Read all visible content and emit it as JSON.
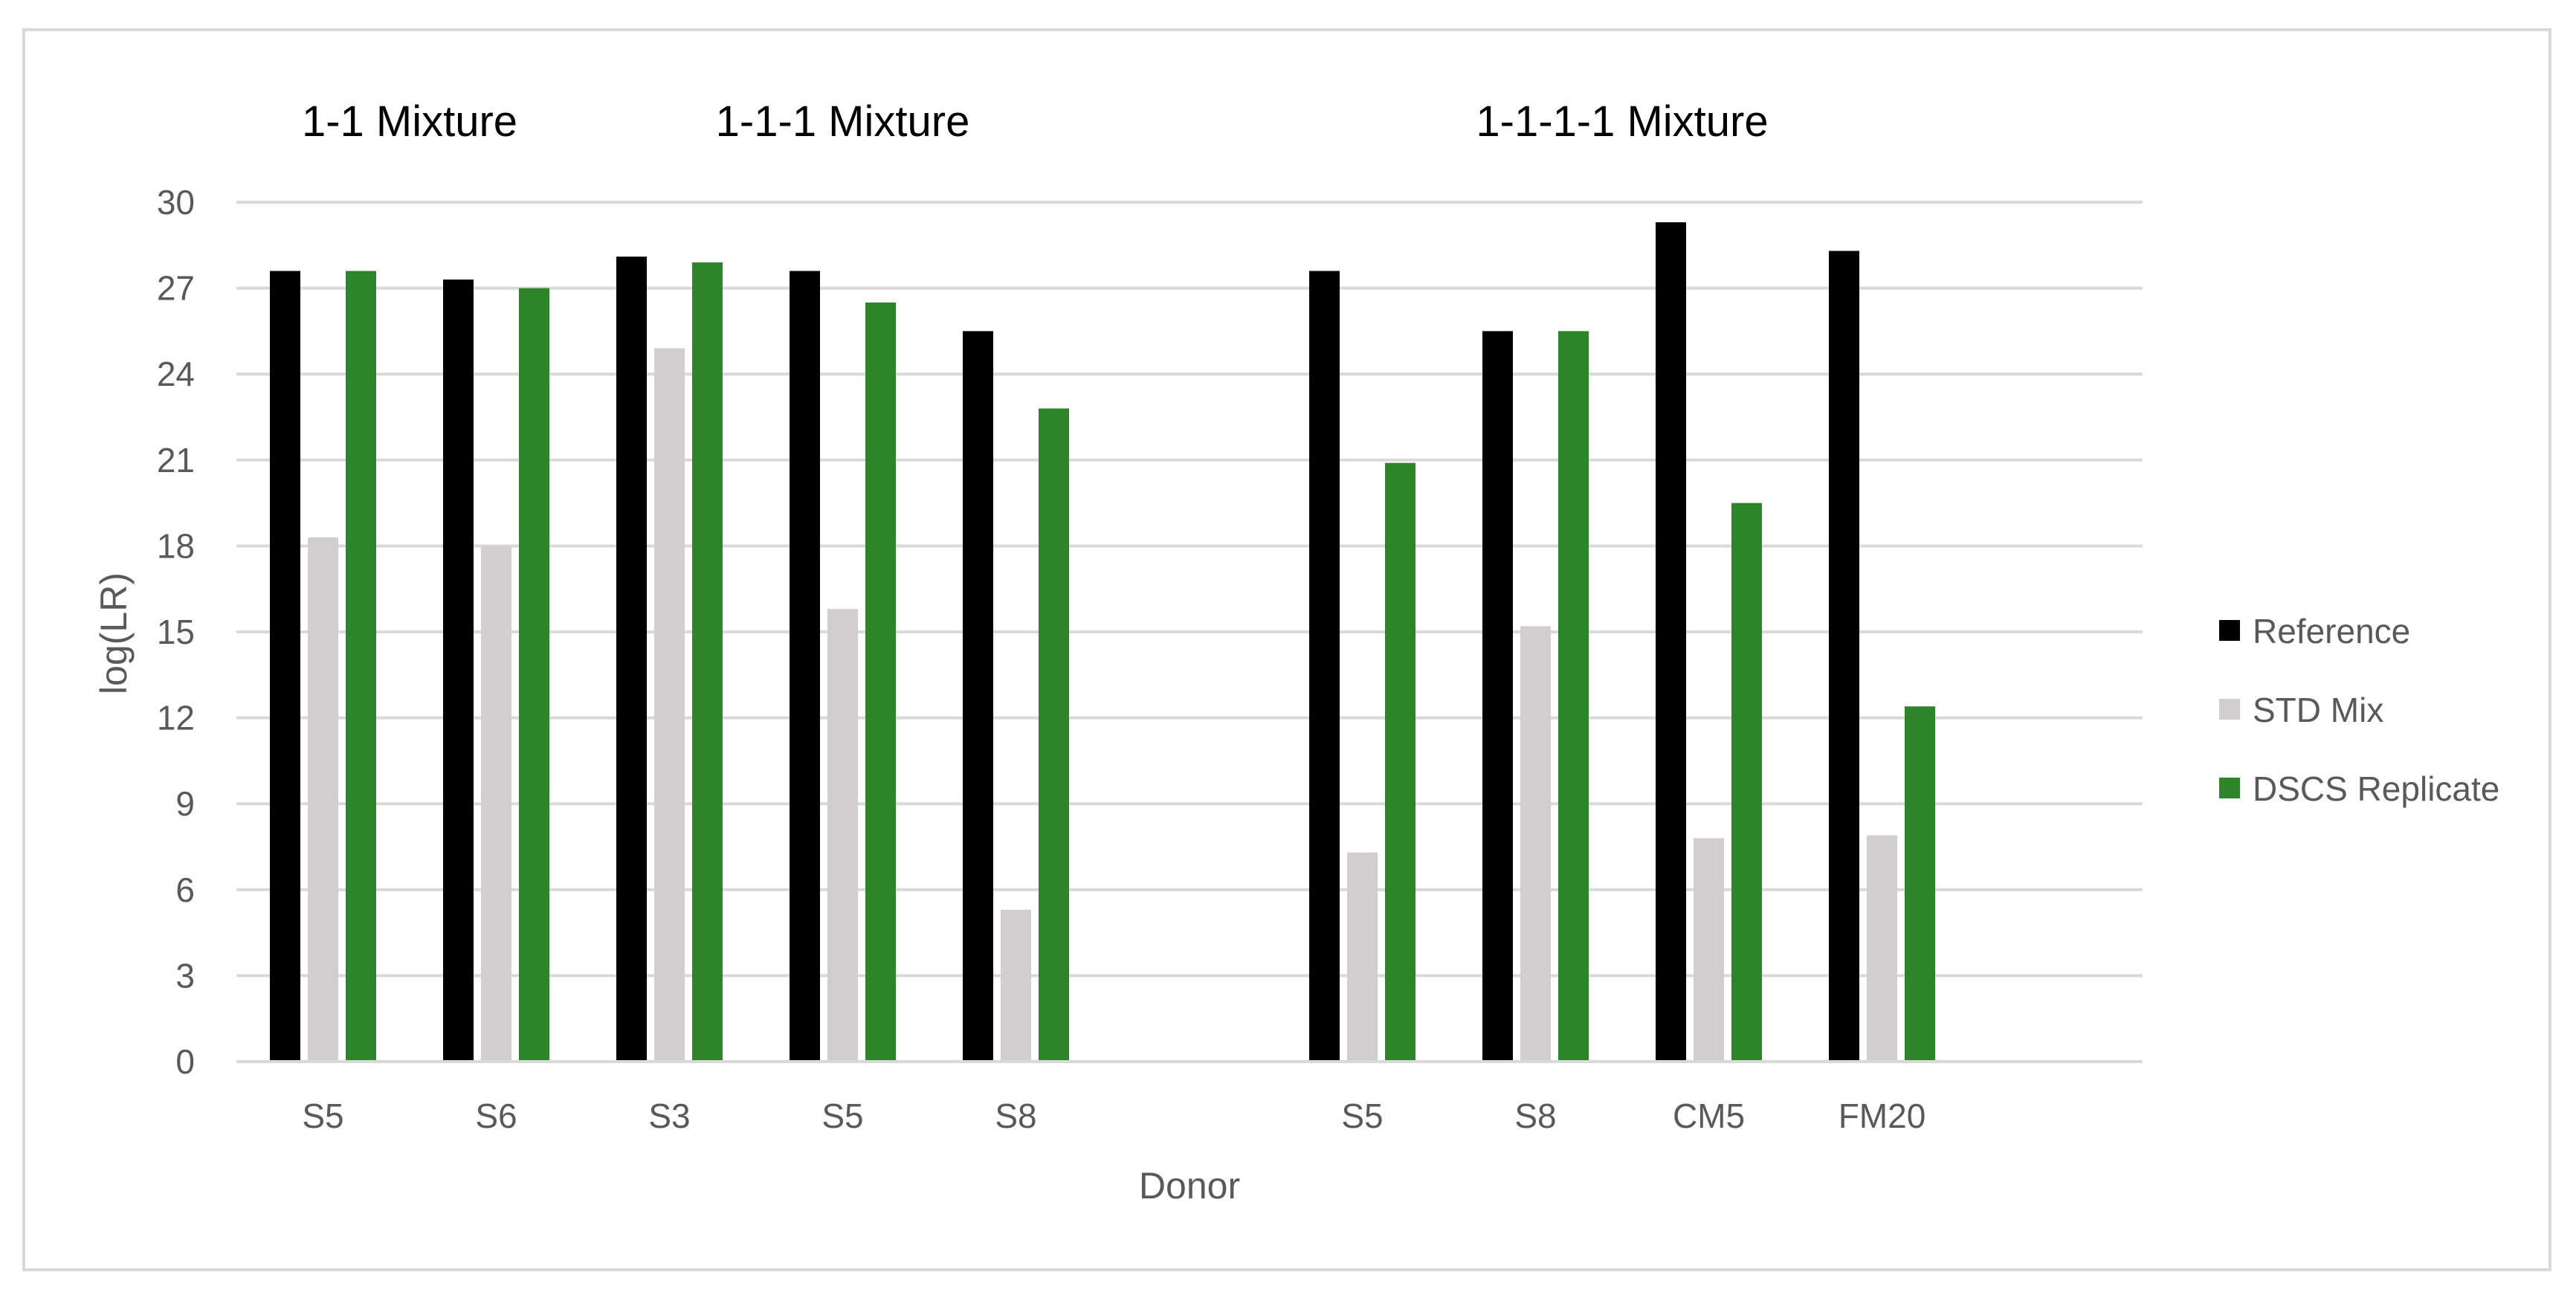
{
  "chart_data": {
    "type": "bar",
    "xlabel": "Donor",
    "ylabel": "log(LR)",
    "ylim": [
      0,
      30
    ],
    "yticks": [
      "0",
      "3",
      "6",
      "9",
      "12",
      "15",
      "18",
      "21",
      "24",
      "27",
      "30"
    ],
    "grid": true,
    "legend_position": "right",
    "colors": {
      "Reference": "#000000",
      "STD Mix": "#d0cece",
      "DSCS Replicate": "#2e8428",
      "grid": "#d9d9d9",
      "text": "#595959"
    },
    "groups": [
      {
        "title": "1-1 Mixture",
        "categories": [
          "S5",
          "S6"
        ],
        "series": [
          {
            "name": "Reference",
            "values": [
              27.6,
              27.3
            ]
          },
          {
            "name": "STD Mix",
            "values": [
              18.3,
              18.0
            ]
          },
          {
            "name": "DSCS Replicate",
            "values": [
              27.6,
              27.0
            ]
          }
        ]
      },
      {
        "title": "1-1-1 Mixture",
        "categories": [
          "S3",
          "S5",
          "S8"
        ],
        "series": [
          {
            "name": "Reference",
            "values": [
              28.1,
              27.6,
              25.5
            ]
          },
          {
            "name": "STD Mix",
            "values": [
              24.9,
              15.8,
              5.3
            ]
          },
          {
            "name": "DSCS Replicate",
            "values": [
              27.9,
              26.5,
              22.8
            ]
          }
        ]
      },
      {
        "title": "1-1-1-1 Mixture",
        "categories": [
          "S5",
          "S8",
          "CM5",
          "FM20"
        ],
        "series": [
          {
            "name": "Reference",
            "values": [
              27.6,
              25.5,
              29.3,
              28.3
            ]
          },
          {
            "name": "STD Mix",
            "values": [
              7.3,
              15.2,
              7.8,
              7.9
            ]
          },
          {
            "name": "DSCS Replicate",
            "values": [
              20.9,
              25.5,
              19.5,
              12.4
            ]
          }
        ]
      }
    ],
    "legend": [
      "Reference",
      "STD Mix",
      "DSCS Replicate"
    ]
  }
}
